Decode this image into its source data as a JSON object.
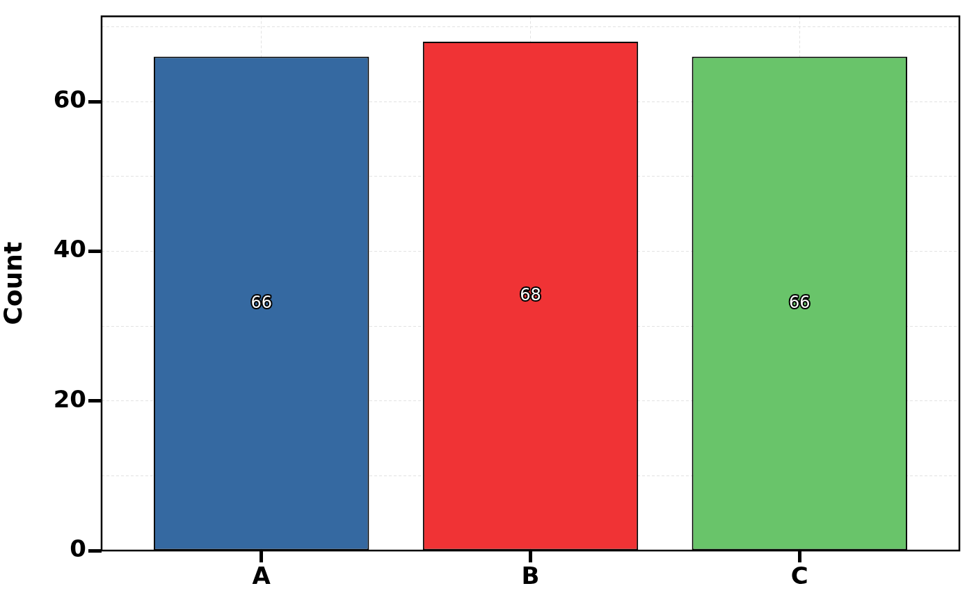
{
  "chart_data": {
    "type": "bar",
    "categories": [
      "A",
      "B",
      "C"
    ],
    "values": [
      66,
      68,
      66
    ],
    "colors": [
      "#3569a1",
      "#f03335",
      "#69c46a"
    ],
    "ylabel": "Count",
    "ylim": [
      0,
      71.4
    ],
    "yticks": [
      0,
      {
        "value": 10,
        "label": null
      },
      20,
      {
        "value": 30,
        "label": null
      },
      40,
      {
        "value": 50,
        "label": null
      },
      60,
      {
        "value": 70,
        "label": null
      }
    ],
    "grid": true,
    "data_labels": true
  }
}
